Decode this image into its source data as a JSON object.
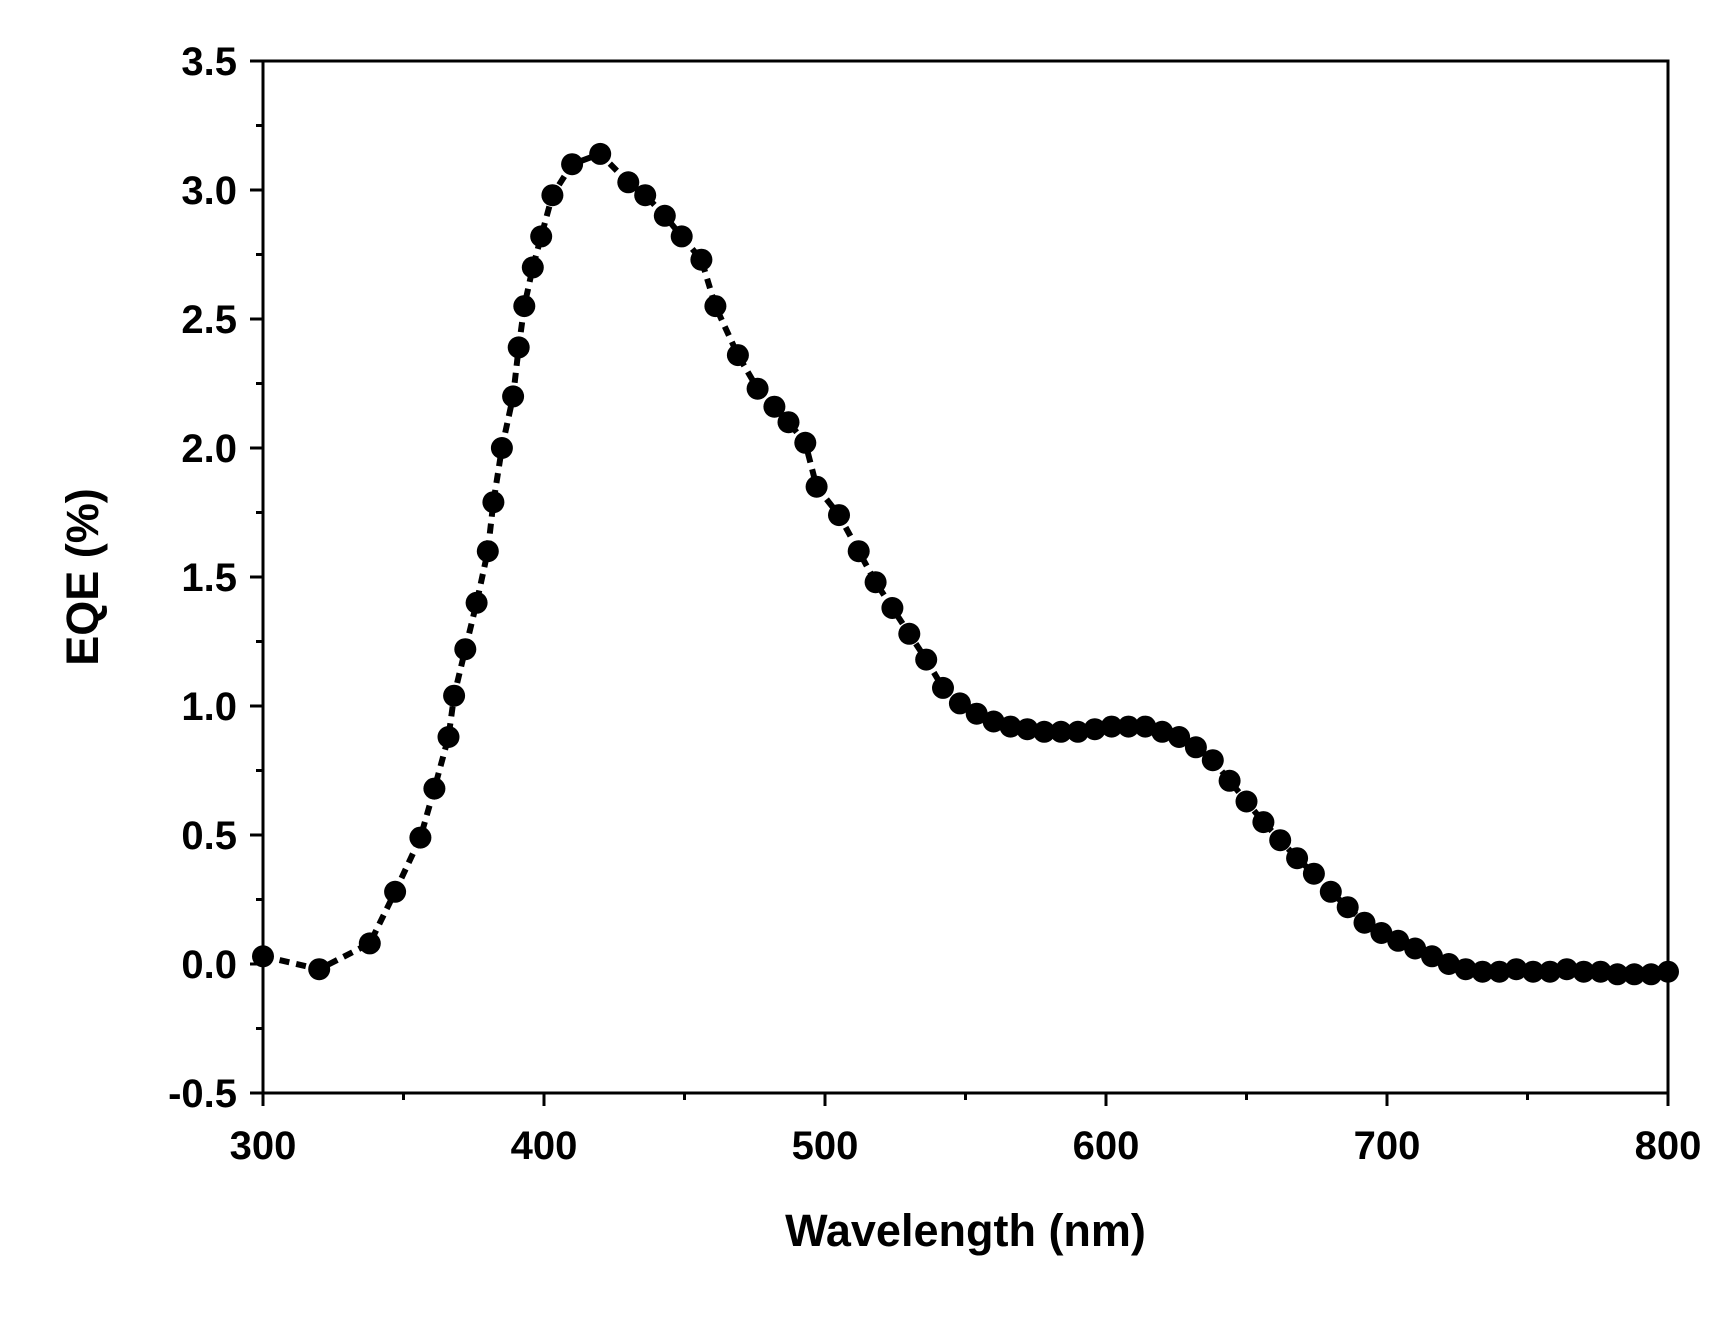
{
  "chart_data": {
    "type": "scatter",
    "title": "",
    "xlabel": "Wavelength (nm)",
    "ylabel": "EQE (%)",
    "xlim": [
      300,
      800
    ],
    "ylim": [
      -0.5,
      3.5
    ],
    "xticks": [
      300,
      400,
      500,
      600,
      700,
      800
    ],
    "xtick_labels": [
      "300",
      "400",
      "500",
      "600",
      "700",
      "800"
    ],
    "yticks": [
      -0.5,
      0.0,
      0.5,
      1.0,
      1.5,
      2.0,
      2.5,
      3.0,
      3.5
    ],
    "ytick_labels": [
      "-0.5",
      "0.0",
      "0.5",
      "1.0",
      "1.5",
      "2.0",
      "2.5",
      "3.0",
      "3.5"
    ],
    "grid": false,
    "legend": "none",
    "marker_color": "#000000",
    "line_style": "dashed",
    "series": [
      {
        "name": "EQE",
        "x": [
          300,
          320,
          338,
          347,
          356,
          361,
          366,
          368,
          372,
          376,
          380,
          382,
          385,
          389,
          391,
          393,
          396,
          399,
          403,
          410,
          420,
          430,
          436,
          443,
          449,
          456,
          461,
          469,
          476,
          482,
          487,
          493,
          497,
          505,
          512,
          518,
          524,
          530,
          536,
          542,
          548,
          554,
          560,
          566,
          572,
          578,
          584,
          590,
          596,
          602,
          608,
          614,
          620,
          626,
          632,
          638,
          644,
          650,
          656,
          662,
          668,
          674,
          680,
          686,
          692,
          698,
          704,
          710,
          716,
          722,
          728,
          734,
          740,
          746,
          752,
          758,
          764,
          770,
          776,
          782,
          788,
          794,
          800
        ],
        "values": [
          0.03,
          -0.02,
          0.08,
          0.28,
          0.49,
          0.68,
          0.88,
          1.04,
          1.22,
          1.4,
          1.6,
          1.79,
          2.0,
          2.2,
          2.39,
          2.55,
          2.7,
          2.82,
          2.98,
          3.1,
          3.14,
          3.03,
          2.98,
          2.9,
          2.82,
          2.73,
          2.55,
          2.36,
          2.23,
          2.16,
          2.1,
          2.02,
          1.85,
          1.74,
          1.6,
          1.48,
          1.38,
          1.28,
          1.18,
          1.07,
          1.01,
          0.97,
          0.94,
          0.92,
          0.91,
          0.9,
          0.9,
          0.9,
          0.91,
          0.92,
          0.92,
          0.92,
          0.9,
          0.88,
          0.84,
          0.79,
          0.71,
          0.63,
          0.55,
          0.48,
          0.41,
          0.35,
          0.28,
          0.22,
          0.16,
          0.12,
          0.09,
          0.06,
          0.03,
          0.0,
          -0.02,
          -0.03,
          -0.03,
          -0.02,
          -0.03,
          -0.03,
          -0.02,
          -0.03,
          -0.03,
          -0.04,
          -0.04,
          -0.04,
          -0.03
        ]
      }
    ]
  }
}
